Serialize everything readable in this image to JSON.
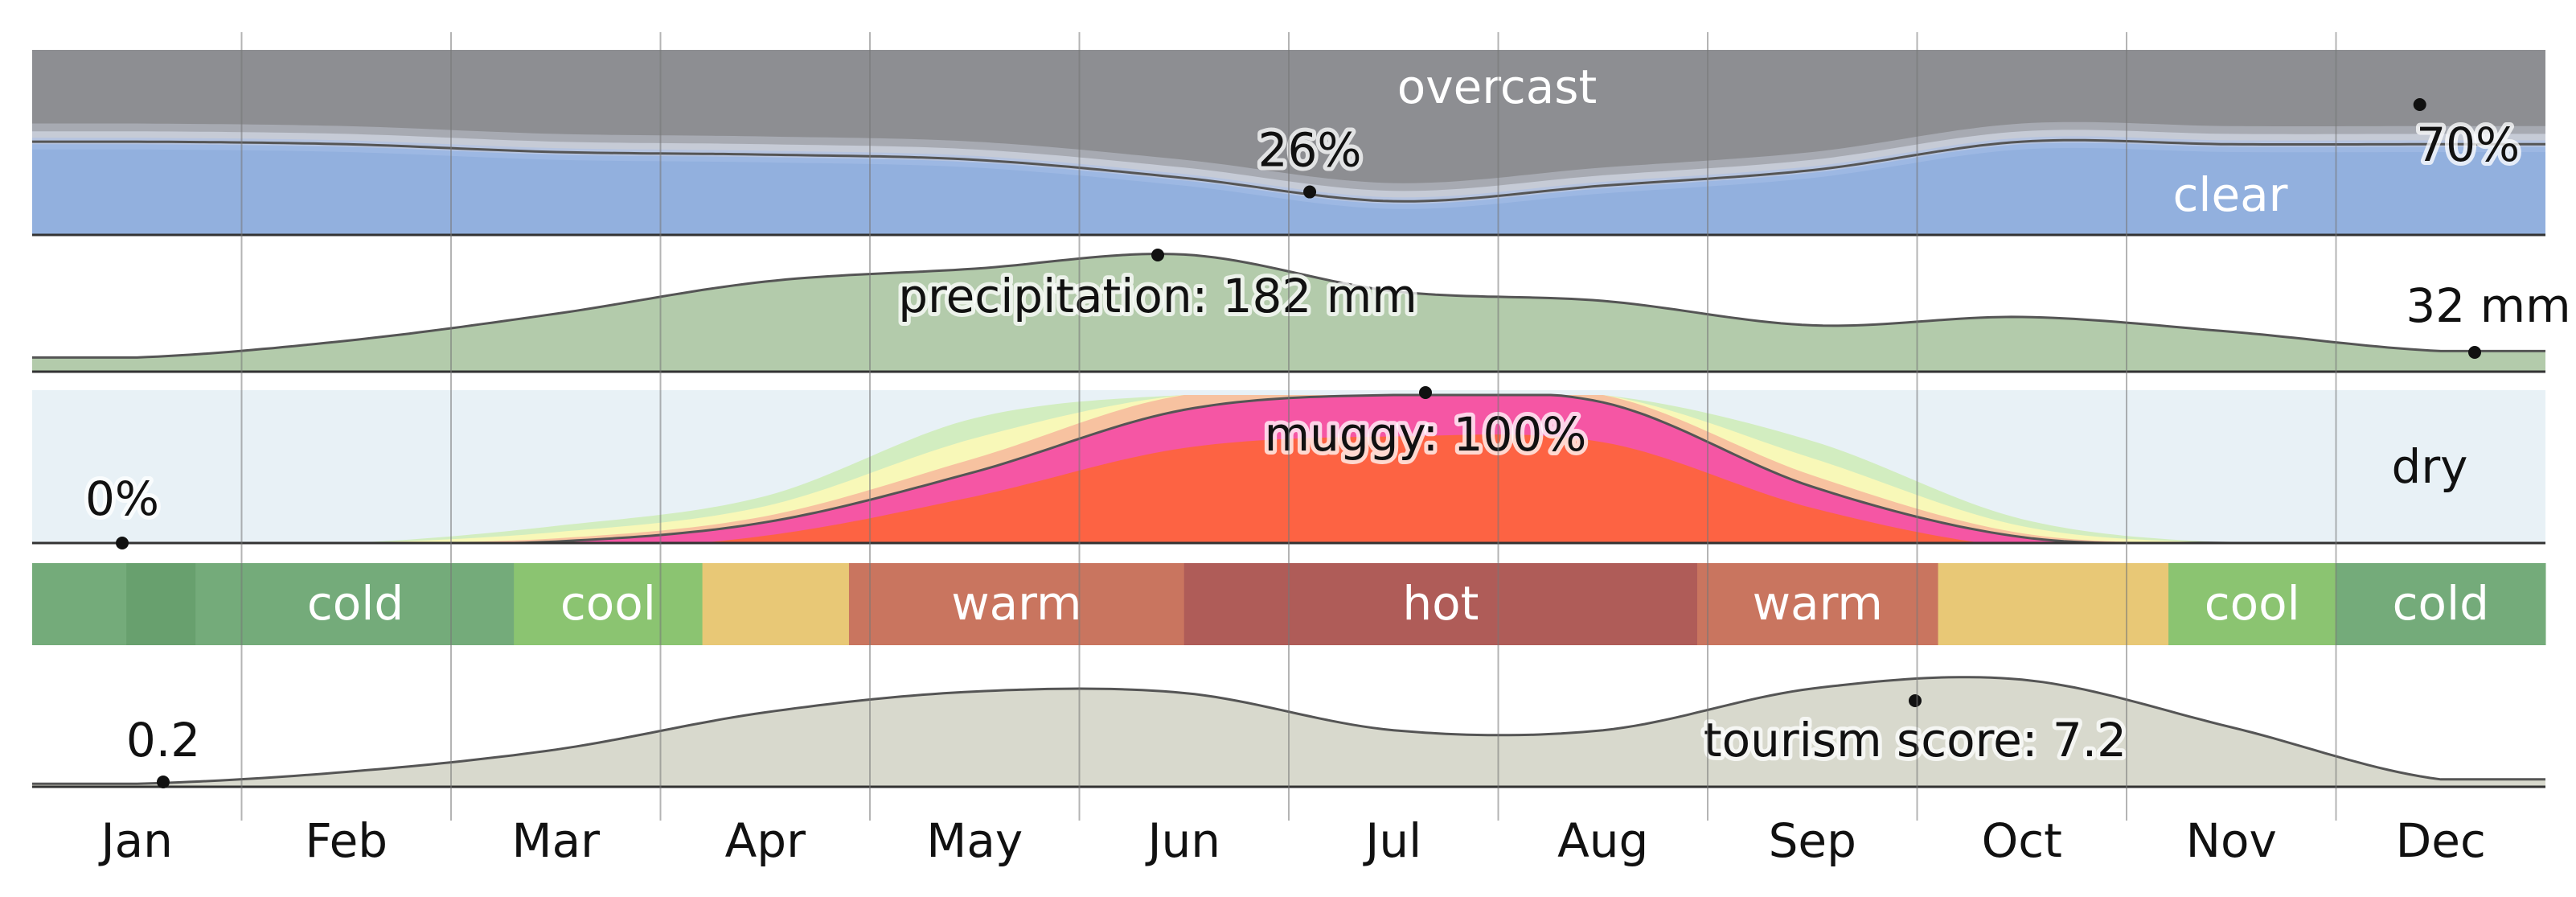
{
  "chart_data": {
    "type": "area",
    "months": [
      "Jan",
      "Feb",
      "Mar",
      "Apr",
      "May",
      "Jun",
      "Jul",
      "Aug",
      "Sep",
      "Oct",
      "Nov",
      "Dec"
    ],
    "cloud_cover": {
      "labels": {
        "top": "overcast",
        "bottom": "clear"
      },
      "clear_pct": [
        72,
        70,
        64,
        62,
        58,
        44,
        26,
        38,
        50,
        72,
        70,
        70
      ],
      "colors": [
        "#8d8e92",
        "#a7aab2",
        "#c6cbd6",
        "#b6c4e0",
        "#9db8e3",
        "#92b0de"
      ],
      "annotations": [
        {
          "text": "26%",
          "month_index": 6.1
        },
        {
          "text": "70%",
          "month_index": 11.4
        }
      ]
    },
    "precipitation": {
      "unit": "mm",
      "values_mm": [
        22,
        48,
        90,
        140,
        160,
        182,
        125,
        110,
        72,
        85,
        62,
        32
      ],
      "ylim": [
        0,
        190
      ],
      "color": "#b3cbab",
      "annotations": [
        {
          "text": "precipitation: 182 mm",
          "month_index": 5.3
        },
        {
          "text": "32 mm",
          "month_index": 11.6
        }
      ]
    },
    "humidity": {
      "label": "dry",
      "muggy_pct": [
        0,
        0,
        1,
        14,
        48,
        90,
        100,
        95,
        38,
        4,
        0,
        0
      ],
      "band_colors": [
        "#d2edc0",
        "#f8f8b8",
        "#f7c2a0",
        "#f556a4",
        "#fd6343"
      ],
      "background": "#e8f1f6",
      "annotations": [
        {
          "text": "0%",
          "month_index": 0.4
        },
        {
          "text": "muggy: 100%",
          "month_index": 6.2
        }
      ]
    },
    "temperature_bands": [
      {
        "label": "",
        "from": 0.0,
        "to": 0.45,
        "color": "#74ab7a"
      },
      {
        "label": "",
        "from": 0.45,
        "to": 0.78,
        "color": "#68a06e"
      },
      {
        "label": "cold",
        "from": 0.78,
        "to": 2.3,
        "color": "#74ab7a"
      },
      {
        "label": "cool",
        "from": 2.3,
        "to": 3.2,
        "color": "#8bc471"
      },
      {
        "label": "",
        "from": 3.2,
        "to": 3.9,
        "color": "#e8c876"
      },
      {
        "label": "warm",
        "from": 3.9,
        "to": 5.5,
        "color": "#c9755f"
      },
      {
        "label": "hot",
        "from": 5.5,
        "to": 7.95,
        "color": "#af5c58"
      },
      {
        "label": "warm",
        "from": 7.95,
        "to": 9.1,
        "color": "#c9755f"
      },
      {
        "label": "",
        "from": 9.1,
        "to": 10.2,
        "color": "#e8c876"
      },
      {
        "label": "cool",
        "from": 10.2,
        "to": 11.0,
        "color": "#8bc471"
      },
      {
        "label": "cold",
        "from": 11.0,
        "to": 12.0,
        "color": "#74ab7a"
      }
    ],
    "tourism": {
      "values": [
        0.2,
        1.0,
        2.5,
        5.0,
        6.4,
        6.3,
        3.8,
        3.8,
        6.6,
        7.2,
        4.0,
        0.5
      ],
      "ylim": [
        0,
        8
      ],
      "color": "#d8d9cd",
      "annotations": [
        {
          "text": "0.2",
          "month_index": 0.6
        },
        {
          "text": "tourism score: 7.2",
          "month_index": 9.0
        }
      ]
    }
  }
}
